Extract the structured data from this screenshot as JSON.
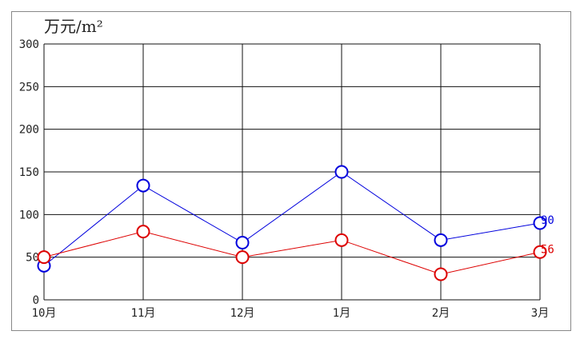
{
  "chart_data": {
    "type": "line",
    "title": "",
    "unit_label": "万元/m²",
    "xlabel": "",
    "ylabel": "万元/m²",
    "categories": [
      "10月",
      "11月",
      "12月",
      "1月",
      "2月",
      "3月"
    ],
    "ylim": [
      0,
      300
    ],
    "yticks": [
      0,
      50,
      100,
      150,
      200,
      250,
      300
    ],
    "grid": true,
    "legend": "none",
    "series": [
      {
        "color": "#0000dd",
        "values": [
          40,
          134,
          67,
          150,
          70,
          90
        ],
        "end_label": "90"
      },
      {
        "color": "#dd0000",
        "values": [
          50,
          80,
          50,
          70,
          30,
          56
        ],
        "end_label": "56"
      }
    ]
  }
}
